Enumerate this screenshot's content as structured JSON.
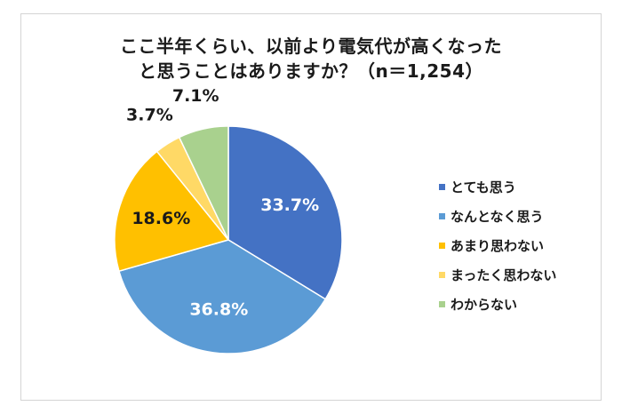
{
  "chart_data": {
    "type": "pie",
    "title": [
      "ここ半年くらい、以前より電気代が高くなった",
      "と思うことはありますか？（n＝1,254）"
    ],
    "categories": [
      "とても思う",
      "なんとなく思う",
      "あまり思わない",
      "まったく思わない",
      "わからない"
    ],
    "values": [
      33.7,
      36.8,
      18.6,
      3.7,
      7.1
    ],
    "data_labels": [
      "33.7%",
      "36.8%",
      "18.6%",
      "3.7%",
      "7.1%"
    ],
    "colors": [
      "#4472c4",
      "#5b9bd5",
      "#ffc000",
      "#ffd966",
      "#a9d18e"
    ],
    "label_colors": [
      "#ffffff",
      "#ffffff",
      "#1a1a1a",
      "#1a1a1a",
      "#1a1a1a"
    ],
    "label_outside": [
      false,
      false,
      false,
      true,
      true
    ],
    "start_angle_deg": 0,
    "direction": "clockwise",
    "legend": "right"
  }
}
